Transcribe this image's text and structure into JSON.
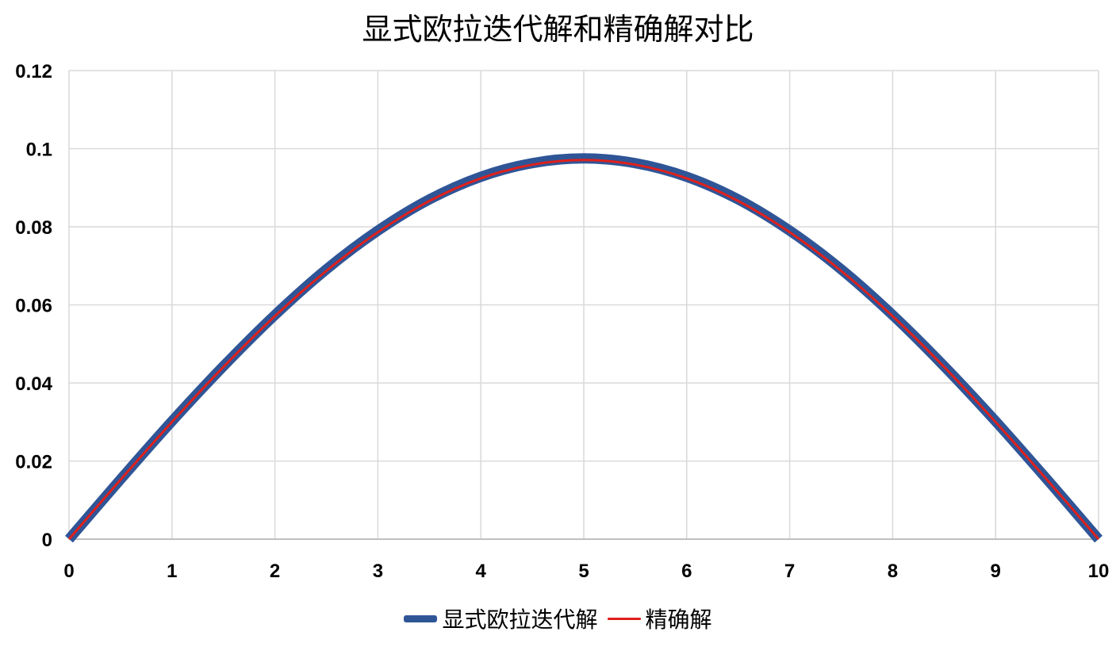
{
  "chart_data": {
    "type": "line",
    "title": "显式欧拉迭代解和精确解对比",
    "xlabel": "",
    "ylabel": "",
    "xlim": [
      0,
      10
    ],
    "ylim": [
      0,
      0.12
    ],
    "x_ticks": [
      "0",
      "1",
      "2",
      "3",
      "4",
      "5",
      "6",
      "7",
      "8",
      "9",
      "10"
    ],
    "y_ticks": [
      "0",
      "0.02",
      "0.04",
      "0.06",
      "0.08",
      "0.1",
      "0.12"
    ],
    "grid": true,
    "legend_position": "bottom",
    "x": [
      0,
      0.5,
      1,
      1.5,
      2,
      2.5,
      3,
      3.5,
      4,
      4.5,
      5,
      5.5,
      6,
      6.5,
      7,
      7.5,
      8,
      8.5,
      9,
      9.5,
      10
    ],
    "series": [
      {
        "name": "显式欧拉迭代解",
        "color": "#2F5597",
        "values": [
          0,
          0.0153,
          0.0302,
          0.0443,
          0.0574,
          0.0691,
          0.079,
          0.087,
          0.0928,
          0.0963,
          0.0975,
          0.0963,
          0.0928,
          0.087,
          0.079,
          0.0691,
          0.0574,
          0.0443,
          0.0302,
          0.0153,
          0
        ]
      },
      {
        "name": "精确解",
        "color": "#E0201B",
        "values": [
          0,
          0.0152,
          0.03,
          0.0441,
          0.0571,
          0.0687,
          0.0786,
          0.0866,
          0.0924,
          0.0959,
          0.0971,
          0.0959,
          0.0924,
          0.0866,
          0.0786,
          0.0687,
          0.0571,
          0.0441,
          0.03,
          0.0152,
          0
        ]
      }
    ]
  }
}
